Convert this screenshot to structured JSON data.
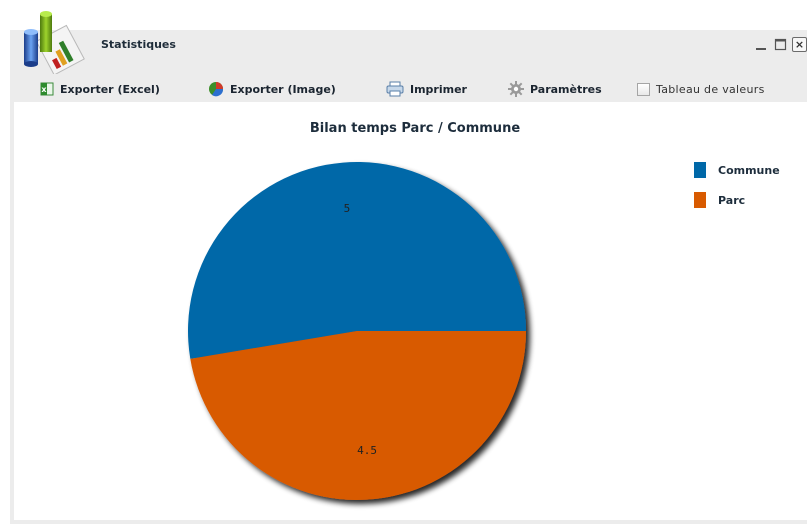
{
  "window": {
    "title": "Statistiques"
  },
  "toolbar": {
    "export_excel": "Exporter (Excel)",
    "export_image": "Exporter (Image)",
    "print": "Imprimer",
    "settings": "Paramètres",
    "value_table": "Tableau de valeurs"
  },
  "colors": {
    "commune": "#0068a8",
    "parc": "#d85a00"
  },
  "chart_data": {
    "type": "pie",
    "title": "Bilan temps Parc / Commune",
    "slices": [
      {
        "label": "Commune",
        "value": 5,
        "value_label": "5",
        "color": "#0068a8"
      },
      {
        "label": "Parc",
        "value": 4.5,
        "value_label": "4.5",
        "color": "#d85a00"
      }
    ],
    "legend": {
      "position": "right"
    }
  }
}
